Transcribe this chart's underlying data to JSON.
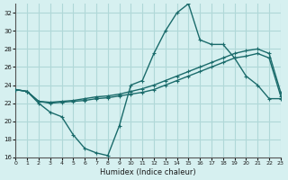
{
  "xlabel": "Humidex (Indice chaleur)",
  "background_color": "#d6f0f0",
  "grid_color": "#b0d8d8",
  "line_color": "#1a6b6b",
  "xlim": [
    0,
    23
  ],
  "ylim": [
    16,
    33
  ],
  "xticks": [
    0,
    1,
    2,
    3,
    4,
    5,
    6,
    7,
    8,
    9,
    10,
    11,
    12,
    13,
    14,
    15,
    16,
    17,
    18,
    19,
    20,
    21,
    22,
    23
  ],
  "yticks": [
    16,
    18,
    20,
    22,
    24,
    26,
    28,
    30,
    32
  ],
  "series1_x": [
    0,
    1,
    2,
    3,
    4,
    5,
    6,
    7,
    8,
    9,
    10,
    11,
    12,
    13,
    14,
    15,
    16,
    17,
    18,
    19,
    20,
    21,
    22,
    23
  ],
  "series1_y": [
    23.5,
    23.3,
    22.0,
    21.0,
    20.5,
    18.5,
    17.0,
    16.5,
    16.2,
    19.5,
    24.0,
    24.5,
    27.5,
    30.0,
    32.0,
    33.0,
    29.0,
    28.5,
    28.5,
    27.0,
    25.0,
    24.0,
    22.5,
    22.5
  ],
  "series2_x": [
    0,
    1,
    2,
    3,
    4,
    5,
    6,
    7,
    8,
    9,
    10,
    11,
    12,
    13,
    14,
    15,
    16,
    17,
    18,
    19,
    20,
    21,
    22,
    23
  ],
  "series2_y": [
    23.5,
    23.3,
    22.2,
    22.0,
    22.1,
    22.2,
    22.3,
    22.5,
    22.6,
    22.8,
    23.0,
    23.2,
    23.5,
    24.0,
    24.5,
    25.0,
    25.5,
    26.0,
    26.5,
    27.0,
    27.2,
    27.5,
    27.0,
    22.8
  ],
  "series3_x": [
    0,
    1,
    2,
    3,
    4,
    5,
    6,
    7,
    8,
    9,
    10,
    11,
    12,
    13,
    14,
    15,
    16,
    17,
    18,
    19,
    20,
    21,
    22,
    23
  ],
  "series3_y": [
    23.5,
    23.3,
    22.2,
    22.1,
    22.2,
    22.3,
    22.5,
    22.7,
    22.8,
    23.0,
    23.3,
    23.6,
    24.0,
    24.5,
    25.0,
    25.5,
    26.0,
    26.5,
    27.0,
    27.5,
    27.8,
    28.0,
    27.5,
    23.2
  ]
}
